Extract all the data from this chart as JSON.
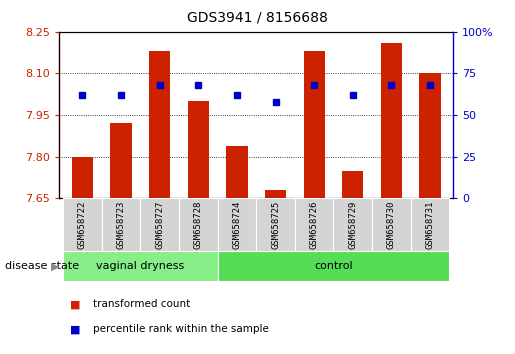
{
  "title": "GDS3941 / 8156688",
  "samples": [
    "GSM658722",
    "GSM658723",
    "GSM658727",
    "GSM658728",
    "GSM658724",
    "GSM658725",
    "GSM658726",
    "GSM658729",
    "GSM658730",
    "GSM658731"
  ],
  "bar_values": [
    7.8,
    7.92,
    8.18,
    8.0,
    7.84,
    7.68,
    8.18,
    7.75,
    8.21,
    8.1
  ],
  "dot_values": [
    62,
    62,
    68,
    68,
    62,
    58,
    68,
    62,
    68,
    68
  ],
  "ylim_left": [
    7.65,
    8.25
  ],
  "ylim_right": [
    0,
    100
  ],
  "yticks_left": [
    7.65,
    7.8,
    7.95,
    8.1,
    8.25
  ],
  "yticks_right": [
    0,
    25,
    50,
    75,
    100
  ],
  "bar_color": "#cc2200",
  "dot_color": "#0000cc",
  "baseline": 7.65,
  "groups": [
    {
      "label": "vaginal dryness",
      "start": 0,
      "end": 4,
      "color": "#88ee88"
    },
    {
      "label": "control",
      "start": 4,
      "end": 10,
      "color": "#55dd55"
    }
  ],
  "group_label": "disease state",
  "legend_items": [
    {
      "label": "transformed count",
      "color": "#cc2200"
    },
    {
      "label": "percentile rank within the sample",
      "color": "#0000cc"
    }
  ],
  "grid_color": "black",
  "grid_linestyle": ":",
  "grid_linewidth": 0.6,
  "bar_color_left_spine": "#cc2200",
  "tick_label_color_left": "#cc2200",
  "tick_label_color_right": "#0000cc",
  "xlabel_bg_color": "#cccccc",
  "xlabel_fontsize": 6.5,
  "label_area_color": "#d4d4d4"
}
